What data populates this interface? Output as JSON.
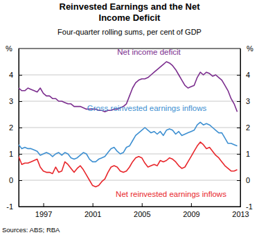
{
  "chart_data": {
    "type": "line",
    "title": "Reinvested Earnings and the Net Income Deficit",
    "subtitle": "Four-quarter rolling sums, per cent of GDP",
    "y_label": "%",
    "source": "Sources: ABS; RBA",
    "x": [
      1995,
      1995.25,
      1995.5,
      1995.75,
      1996,
      1996.25,
      1996.5,
      1996.75,
      1997,
      1997.25,
      1997.5,
      1997.75,
      1998,
      1998.25,
      1998.5,
      1998.75,
      1999,
      1999.25,
      1999.5,
      1999.75,
      2000,
      2000.25,
      2000.5,
      2000.75,
      2001,
      2001.25,
      2001.5,
      2001.75,
      2002,
      2002.25,
      2002.5,
      2002.75,
      2003,
      2003.25,
      2003.5,
      2003.75,
      2004,
      2004.25,
      2004.5,
      2004.75,
      2005,
      2005.25,
      2005.5,
      2005.75,
      2006,
      2006.25,
      2006.5,
      2006.75,
      2007,
      2007.25,
      2007.5,
      2007.75,
      2008,
      2008.25,
      2008.5,
      2008.75,
      2009,
      2009.25,
      2009.5,
      2009.75,
      2010,
      2010.25,
      2010.5,
      2010.75,
      2011,
      2011.25,
      2011.5,
      2011.75,
      2012,
      2012.25,
      2012.5,
      2012.75
    ],
    "series": [
      {
        "name": "Net income deficit",
        "color": "#7b2d8e",
        "values": [
          3.5,
          3.4,
          3.4,
          3.5,
          3.45,
          3.4,
          3.35,
          3.5,
          3.3,
          3.2,
          3.2,
          3.1,
          3.1,
          3.0,
          3.0,
          2.95,
          2.9,
          2.9,
          2.8,
          2.8,
          2.8,
          2.75,
          2.7,
          2.7,
          2.7,
          2.7,
          2.65,
          2.65,
          2.6,
          2.65,
          2.65,
          2.7,
          2.7,
          2.75,
          2.8,
          2.9,
          3.2,
          3.5,
          3.7,
          3.8,
          3.85,
          3.85,
          3.9,
          4.0,
          4.1,
          4.2,
          4.3,
          4.4,
          4.5,
          4.45,
          4.35,
          4.2,
          4.0,
          3.8,
          3.6,
          3.5,
          3.55,
          3.6,
          3.9,
          4.1,
          4.0,
          4.1,
          4.05,
          3.95,
          4.0,
          3.9,
          3.8,
          3.6,
          3.4,
          3.1,
          2.9,
          2.6
        ]
      },
      {
        "name": "Gross reinvested earnings inflows",
        "color": "#3d8fd1",
        "values": [
          1.35,
          1.2,
          1.25,
          1.2,
          1.2,
          1.15,
          1.1,
          0.95,
          1.0,
          1.05,
          1.0,
          0.9,
          1.0,
          1.05,
          0.95,
          1.05,
          1.0,
          0.85,
          0.8,
          0.85,
          0.95,
          1.05,
          1.0,
          0.8,
          0.7,
          0.7,
          0.8,
          0.85,
          0.9,
          1.05,
          1.2,
          1.25,
          1.1,
          1.0,
          1.05,
          1.25,
          1.3,
          1.5,
          1.7,
          1.8,
          1.9,
          2.0,
          1.9,
          1.8,
          1.85,
          1.75,
          1.85,
          1.7,
          1.9,
          1.95,
          1.9,
          1.75,
          1.85,
          1.7,
          1.75,
          1.8,
          1.85,
          1.9,
          2.1,
          2.2,
          2.1,
          2.15,
          2.1,
          2.0,
          1.9,
          1.8,
          1.8,
          1.6,
          1.4,
          1.4,
          1.35,
          1.3
        ]
      },
      {
        "name": "Net reinvested earnings inflows",
        "color": "#e8262b",
        "values": [
          0.9,
          0.6,
          0.65,
          0.65,
          0.7,
          0.75,
          0.8,
          0.5,
          0.35,
          0.3,
          0.3,
          0.25,
          0.5,
          0.3,
          0.35,
          0.7,
          0.6,
          0.45,
          0.3,
          0.45,
          0.55,
          0.4,
          0.2,
          0.0,
          -0.2,
          -0.25,
          -0.2,
          -0.05,
          0.05,
          0.3,
          0.5,
          0.55,
          0.5,
          0.35,
          0.3,
          0.35,
          0.5,
          0.7,
          0.85,
          0.9,
          0.85,
          0.65,
          0.5,
          0.55,
          0.6,
          0.55,
          0.75,
          0.7,
          0.75,
          0.85,
          0.8,
          0.7,
          0.55,
          0.45,
          0.5,
          0.7,
          0.9,
          1.1,
          1.3,
          1.45,
          1.35,
          1.2,
          1.25,
          1.1,
          0.95,
          0.85,
          0.7,
          0.55,
          0.45,
          0.35,
          0.35,
          0.4
        ]
      }
    ],
    "xlim": [
      1995,
      2013
    ],
    "xticks": [
      1997,
      2001,
      2005,
      2009,
      2013
    ],
    "ylim": [
      -1,
      5
    ],
    "yticks": [
      -1,
      0,
      1,
      2,
      3,
      4
    ],
    "grid": true
  }
}
